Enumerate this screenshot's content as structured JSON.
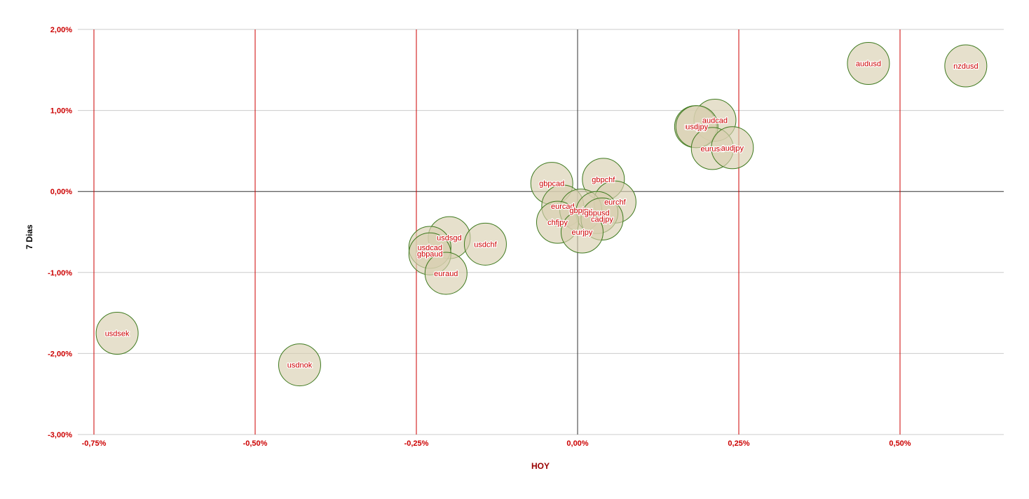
{
  "chart_data": {
    "type": "scatter",
    "title": "",
    "xlabel": "HOY",
    "ylabel": "7 Dias",
    "xlim": [
      -0.76,
      0.66
    ],
    "ylim": [
      -3.0,
      2.0
    ],
    "x_ticks": [
      {
        "value": -0.75,
        "label": "-0,75%"
      },
      {
        "value": -0.5,
        "label": "-0,50%"
      },
      {
        "value": -0.25,
        "label": "-0,25%"
      },
      {
        "value": 0.0,
        "label": "0,00%"
      },
      {
        "value": 0.25,
        "label": "0,25%"
      },
      {
        "value": 0.5,
        "label": "0,50%"
      }
    ],
    "y_ticks": [
      {
        "value": 2.0,
        "label": "2,00%"
      },
      {
        "value": 1.0,
        "label": "1,00%"
      },
      {
        "value": 0.0,
        "label": "0,00%"
      },
      {
        "value": -1.0,
        "label": "-1,00%"
      },
      {
        "value": -2.0,
        "label": "-2,00%"
      },
      {
        "value": -3.0,
        "label": "-3,00%"
      }
    ],
    "grid": true,
    "legend": "none",
    "colors": {
      "tick_text": "#cc0000",
      "x_title": "#990000",
      "y_title": "#000000",
      "v_grid": "#cc0000",
      "h_grid": "#cccccc",
      "zero_line": "#333333",
      "bubble_fill": "#d9cfb0",
      "bubble_stroke": "#3f7a1f",
      "label": "#cc0000",
      "label_halo": "#ffffff"
    },
    "points": [
      {
        "label": "nzdusd",
        "x": 0.602,
        "y": 1.55
      },
      {
        "label": "audusd",
        "x": 0.451,
        "y": 1.58
      },
      {
        "label": "audcad",
        "x": 0.213,
        "y": 0.88
      },
      {
        "label": "usdjpy",
        "x": 0.183,
        "y": 0.8
      },
      {
        "label": "usdjpy",
        "x": 0.185,
        "y": 0.8
      },
      {
        "label": "eurusd",
        "x": 0.209,
        "y": 0.53
      },
      {
        "label": "audjpy",
        "x": 0.24,
        "y": 0.54
      },
      {
        "label": "gbpcad",
        "x": -0.04,
        "y": 0.1
      },
      {
        "label": "gbpchf",
        "x": 0.04,
        "y": 0.15
      },
      {
        "label": "eurchf",
        "x": 0.058,
        "y": -0.13
      },
      {
        "label": "eurcad",
        "x": -0.023,
        "y": -0.18
      },
      {
        "label": "gbpjpy",
        "x": 0.005,
        "y": -0.23
      },
      {
        "label": "gbpusd",
        "x": 0.03,
        "y": -0.26
      },
      {
        "label": "cadjpy",
        "x": 0.038,
        "y": -0.34
      },
      {
        "label": "chfjpy",
        "x": -0.031,
        "y": -0.38
      },
      {
        "label": "eurjpy",
        "x": 0.007,
        "y": -0.5
      },
      {
        "label": "usdsgd",
        "x": -0.199,
        "y": -0.57
      },
      {
        "label": "usdchf",
        "x": -0.143,
        "y": -0.65
      },
      {
        "label": "usdcad",
        "x": -0.229,
        "y": -0.69
      },
      {
        "label": "gbpaud",
        "x": -0.229,
        "y": -0.77
      },
      {
        "label": "euraud",
        "x": -0.204,
        "y": -1.01
      },
      {
        "label": "usdsek",
        "x": -0.714,
        "y": -1.75
      },
      {
        "label": "usdnok",
        "x": -0.431,
        "y": -2.14
      }
    ]
  }
}
